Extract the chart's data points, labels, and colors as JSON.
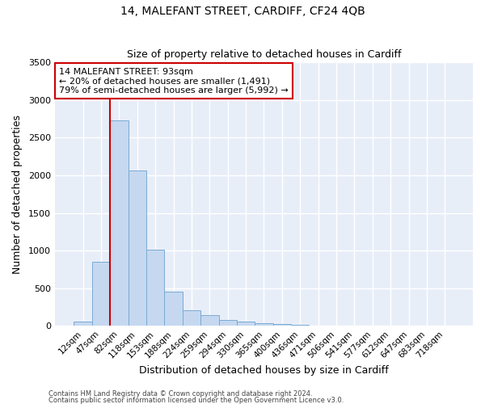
{
  "title1": "14, MALEFANT STREET, CARDIFF, CF24 4QB",
  "title2": "Size of property relative to detached houses in Cardiff",
  "xlabel": "Distribution of detached houses by size in Cardiff",
  "ylabel": "Number of detached properties",
  "categories": [
    "12sqm",
    "47sqm",
    "82sqm",
    "118sqm",
    "153sqm",
    "188sqm",
    "224sqm",
    "259sqm",
    "294sqm",
    "330sqm",
    "365sqm",
    "400sqm",
    "436sqm",
    "471sqm",
    "506sqm",
    "541sqm",
    "577sqm",
    "612sqm",
    "647sqm",
    "683sqm",
    "718sqm"
  ],
  "values": [
    55,
    855,
    2730,
    2060,
    1010,
    450,
    205,
    145,
    75,
    58,
    38,
    22,
    12,
    5,
    3,
    2,
    1,
    1,
    1,
    0,
    0
  ],
  "bar_color": "#c5d8f0",
  "bar_edge_color": "#7aaad4",
  "red_line_index": 2,
  "annotation_line1": "14 MALEFANT STREET: 93sqm",
  "annotation_line2": "← 20% of detached houses are smaller (1,491)",
  "annotation_line3": "79% of semi-detached houses are larger (5,992) →",
  "annotation_box_facecolor": "#ffffff",
  "annotation_box_edgecolor": "#cc0000",
  "red_line_color": "#cc0000",
  "fig_bg_color": "#ffffff",
  "axes_bg_color": "#e8eef8",
  "grid_color": "#ffffff",
  "footer1": "Contains HM Land Registry data © Crown copyright and database right 2024.",
  "footer2": "Contains public sector information licensed under the Open Government Licence v3.0.",
  "ylim": [
    0,
    3500
  ],
  "yticks": [
    0,
    500,
    1000,
    1500,
    2000,
    2500,
    3000,
    3500
  ]
}
